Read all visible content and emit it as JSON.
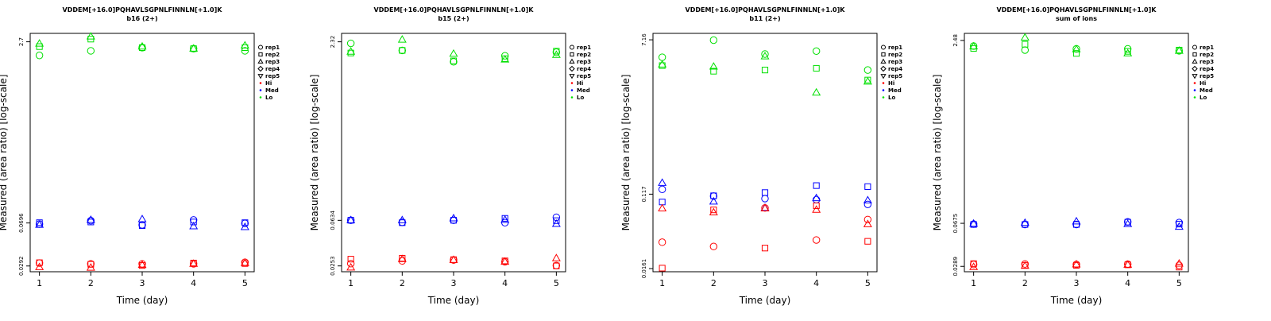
{
  "colors": {
    "Hi": "#ff0000",
    "Med": "#0000ff",
    "Lo": "#00e000"
  },
  "legend": {
    "reps": [
      {
        "label": "rep1",
        "marker": "circle"
      },
      {
        "label": "rep2",
        "marker": "square"
      },
      {
        "label": "rep3",
        "marker": "triangle"
      },
      {
        "label": "rep4",
        "marker": "diamond"
      },
      {
        "label": "rep5",
        "marker": "triangle-down"
      }
    ],
    "groups": [
      "Hi",
      "Med",
      "Lo"
    ]
  },
  "chart_data": [
    {
      "type": "scatter",
      "title": "VDDEM[+16.0]PQHAVLSGPNLFINNLN[+1.0]K",
      "subtitle": "b16 (2+)",
      "xlabel": "Time (day)",
      "ylabel": "Measured (area ratio) [log-scale]",
      "log_y": true,
      "xticks": [
        1,
        2,
        3,
        4,
        5
      ],
      "yticks": [
        0.0292,
        0.0696,
        2.7
      ],
      "yticklabels": [
        "0.0292",
        "0.0696",
        "2.7"
      ],
      "ylim": [
        0.026,
        3.2
      ],
      "series": [
        {
          "group": "Lo",
          "rep": "rep1",
          "x": [
            1,
            2,
            3,
            4,
            5
          ],
          "y": [
            2.05,
            2.25,
            2.4,
            2.35,
            2.25
          ]
        },
        {
          "group": "Lo",
          "rep": "rep2",
          "x": [
            1,
            2,
            3,
            4,
            5
          ],
          "y": [
            2.45,
            2.85,
            2.4,
            2.35,
            2.4
          ]
        },
        {
          "group": "Lo",
          "rep": "rep3",
          "x": [
            1,
            2,
            3,
            4,
            5
          ],
          "y": [
            2.6,
            3.0,
            2.45,
            2.35,
            2.5
          ]
        },
        {
          "group": "Med",
          "rep": "rep1",
          "x": [
            1,
            2,
            3,
            4,
            5
          ],
          "y": [
            0.068,
            0.073,
            0.067,
            0.074,
            0.069
          ]
        },
        {
          "group": "Med",
          "rep": "rep2",
          "x": [
            1,
            2,
            3,
            4,
            5
          ],
          "y": [
            0.07,
            0.071,
            0.066,
            0.071,
            0.07
          ]
        },
        {
          "group": "Med",
          "rep": "rep3",
          "x": [
            1,
            2,
            3,
            4,
            5
          ],
          "y": [
            0.067,
            0.074,
            0.075,
            0.065,
            0.064
          ]
        },
        {
          "group": "Hi",
          "rep": "rep1",
          "x": [
            1,
            2,
            3,
            4,
            5
          ],
          "y": [
            0.031,
            0.0305,
            0.0305,
            0.0305,
            0.0315
          ]
        },
        {
          "group": "Hi",
          "rep": "rep2",
          "x": [
            1,
            2,
            3,
            4,
            5
          ],
          "y": [
            0.0312,
            0.0302,
            0.0295,
            0.031,
            0.0307
          ]
        },
        {
          "group": "Hi",
          "rep": "rep3",
          "x": [
            1,
            2,
            3,
            4,
            5
          ],
          "y": [
            0.0285,
            0.0282,
            0.0298,
            0.0305,
            0.031
          ]
        }
      ]
    },
    {
      "type": "scatter",
      "title": "VDDEM[+16.0]PQHAVLSGPNLFINNLN[+1.0]K",
      "subtitle": "b15 (2+)",
      "xlabel": "Time (day)",
      "ylabel": "Measured (area ratio) [log-scale]",
      "log_y": true,
      "xticks": [
        1,
        2,
        3,
        4,
        5
      ],
      "yticks": [
        0.0253,
        0.0634,
        2.32
      ],
      "yticklabels": [
        "0.0253",
        "0.0634",
        "2.32"
      ],
      "ylim": [
        0.0225,
        2.75
      ],
      "series": [
        {
          "group": "Lo",
          "rep": "rep1",
          "x": [
            1,
            2,
            3,
            4,
            5
          ],
          "y": [
            2.25,
            1.95,
            1.55,
            1.75,
            1.88
          ]
        },
        {
          "group": "Lo",
          "rep": "rep2",
          "x": [
            1,
            2,
            3,
            4,
            5
          ],
          "y": [
            1.85,
            1.95,
            1.58,
            1.65,
            1.92
          ]
        },
        {
          "group": "Lo",
          "rep": "rep3",
          "x": [
            1,
            2,
            3,
            4,
            5
          ],
          "y": [
            1.9,
            2.42,
            1.82,
            1.62,
            1.78
          ]
        },
        {
          "group": "Med",
          "rep": "rep1",
          "x": [
            1,
            2,
            3,
            4,
            5
          ],
          "y": [
            0.0635,
            0.061,
            0.0635,
            0.0605,
            0.0675
          ]
        },
        {
          "group": "Med",
          "rep": "rep2",
          "x": [
            1,
            2,
            3,
            4,
            5
          ],
          "y": [
            0.0635,
            0.0605,
            0.0635,
            0.066,
            0.063
          ]
        },
        {
          "group": "Med",
          "rep": "rep3",
          "x": [
            1,
            2,
            3,
            4,
            5
          ],
          "y": [
            0.0635,
            0.0635,
            0.066,
            0.064,
            0.059
          ]
        },
        {
          "group": "Hi",
          "rep": "rep1",
          "x": [
            1,
            2,
            3,
            4,
            5
          ],
          "y": [
            0.0265,
            0.028,
            0.0285,
            0.0275,
            0.0255
          ]
        },
        {
          "group": "Hi",
          "rep": "rep2",
          "x": [
            1,
            2,
            3,
            4,
            5
          ],
          "y": [
            0.029,
            0.0295,
            0.0287,
            0.028,
            0.0253
          ]
        },
        {
          "group": "Hi",
          "rep": "rep3",
          "x": [
            1,
            2,
            3,
            4,
            5
          ],
          "y": [
            0.0245,
            0.029,
            0.0285,
            0.0275,
            0.0295
          ]
        }
      ]
    },
    {
      "type": "scatter",
      "title": "VDDEM[+16.0]PQHAVLSGPNLFINNLN[+1.0]K",
      "subtitle": "b11 (2+)",
      "xlabel": "Time (day)",
      "ylabel": "Measured (area ratio) [log-scale]",
      "log_y": true,
      "xticks": [
        1,
        2,
        3,
        4,
        5
      ],
      "yticks": [
        0.0161,
        0.117,
        7.16
      ],
      "yticklabels": [
        "0.0161",
        "0.117",
        "7.16"
      ],
      "ylim": [
        0.0148,
        8.5
      ],
      "series": [
        {
          "group": "Lo",
          "rep": "rep1",
          "x": [
            1,
            2,
            3,
            4,
            5
          ],
          "y": [
            4.5,
            7.1,
            4.9,
            5.3,
            3.2
          ]
        },
        {
          "group": "Lo",
          "rep": "rep2",
          "x": [
            1,
            2,
            3,
            4,
            5
          ],
          "y": [
            3.6,
            3.1,
            3.2,
            3.35,
            2.45
          ]
        },
        {
          "group": "Lo",
          "rep": "rep3",
          "x": [
            1,
            2,
            3,
            4,
            5
          ],
          "y": [
            3.7,
            3.5,
            4.6,
            1.75,
            2.35
          ]
        },
        {
          "group": "Med",
          "rep": "rep1",
          "x": [
            1,
            2,
            3,
            4,
            5
          ],
          "y": [
            0.133,
            0.111,
            0.104,
            0.101,
            0.089
          ]
        },
        {
          "group": "Med",
          "rep": "rep2",
          "x": [
            1,
            2,
            3,
            4,
            5
          ],
          "y": [
            0.095,
            0.112,
            0.122,
            0.147,
            0.143
          ]
        },
        {
          "group": "Med",
          "rep": "rep3",
          "x": [
            1,
            2,
            3,
            4,
            5
          ],
          "y": [
            0.158,
            0.096,
            0.081,
            0.105,
            0.099
          ]
        },
        {
          "group": "Hi",
          "rep": "rep1",
          "x": [
            1,
            2,
            3,
            4,
            5
          ],
          "y": [
            0.0325,
            0.029,
            0.081,
            0.0345,
            0.0595
          ]
        },
        {
          "group": "Hi",
          "rep": "rep2",
          "x": [
            1,
            2,
            3,
            4,
            5
          ],
          "y": [
            0.0163,
            0.077,
            0.0278,
            0.086,
            0.0333
          ]
        },
        {
          "group": "Hi",
          "rep": "rep3",
          "x": [
            1,
            2,
            3,
            4,
            5
          ],
          "y": [
            0.08,
            0.072,
            0.08,
            0.077,
            0.0525
          ]
        }
      ]
    },
    {
      "type": "scatter",
      "title": "VDDEM[+16.0]PQHAVLSGPNLFINNLN[+1.0]K",
      "subtitle": "sum of ions",
      "xlabel": "Time (day)",
      "ylabel": "Measured (area ratio) [log-scale]",
      "log_y": true,
      "xticks": [
        1,
        2,
        3,
        4,
        5
      ],
      "yticks": [
        0.0289,
        0.0675,
        2.48
      ],
      "yticklabels": [
        "0.0289",
        "0.0675",
        "2.48"
      ],
      "ylim": [
        0.026,
        2.85
      ],
      "series": [
        {
          "group": "Lo",
          "rep": "rep1",
          "x": [
            1,
            2,
            3,
            4,
            5
          ],
          "y": [
            2.22,
            2.05,
            2.1,
            2.1,
            2.02
          ]
        },
        {
          "group": "Lo",
          "rep": "rep2",
          "x": [
            1,
            2,
            3,
            4,
            5
          ],
          "y": [
            2.12,
            2.3,
            1.92,
            2.0,
            2.05
          ]
        },
        {
          "group": "Lo",
          "rep": "rep3",
          "x": [
            1,
            2,
            3,
            4,
            5
          ],
          "y": [
            2.2,
            2.62,
            2.08,
            1.92,
            2.02
          ]
        },
        {
          "group": "Med",
          "rep": "rep1",
          "x": [
            1,
            2,
            3,
            4,
            5
          ],
          "y": [
            0.0665,
            0.066,
            0.066,
            0.0695,
            0.0685
          ]
        },
        {
          "group": "Med",
          "rep": "rep2",
          "x": [
            1,
            2,
            3,
            4,
            5
          ],
          "y": [
            0.066,
            0.066,
            0.066,
            0.069,
            0.0665
          ]
        },
        {
          "group": "Med",
          "rep": "rep3",
          "x": [
            1,
            2,
            3,
            4,
            5
          ],
          "y": [
            0.067,
            0.068,
            0.07,
            0.0665,
            0.063
          ]
        },
        {
          "group": "Hi",
          "rep": "rep1",
          "x": [
            1,
            2,
            3,
            4,
            5
          ],
          "y": [
            0.03,
            0.0303,
            0.03,
            0.0302,
            0.0295
          ]
        },
        {
          "group": "Hi",
          "rep": "rep2",
          "x": [
            1,
            2,
            3,
            4,
            5
          ],
          "y": [
            0.0305,
            0.0295,
            0.0295,
            0.0298,
            0.0285
          ]
        },
        {
          "group": "Hi",
          "rep": "rep3",
          "x": [
            1,
            2,
            3,
            4,
            5
          ],
          "y": [
            0.0285,
            0.0292,
            0.03,
            0.0298,
            0.0305
          ]
        }
      ]
    }
  ]
}
